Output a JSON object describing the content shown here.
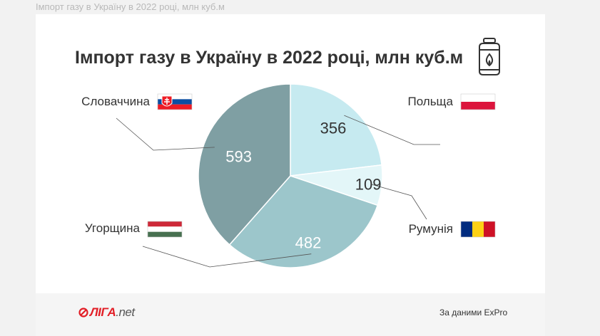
{
  "page": {
    "caption": "Імпорт газу в Україну в 2022 році, млн куб.м"
  },
  "card": {
    "title": "Імпорт газу в Україну в 2022 році, млн куб.м",
    "title_icon": "gas-cylinder-icon"
  },
  "chart_data": {
    "type": "pie",
    "title": "Імпорт газу в Україну в 2022 році, млн куб.м",
    "unit": "млн куб.м",
    "slices": [
      {
        "label": "Польща",
        "value": 356,
        "color": "#c6eaf0",
        "flag": "flag-poland-icon"
      },
      {
        "label": "Румунія",
        "value": 109,
        "color": "#e3f6f8",
        "flag": "flag-romania-icon"
      },
      {
        "label": "Угорщина",
        "value": 482,
        "color": "#9cc6cb",
        "flag": "flag-hungary-icon"
      },
      {
        "label": "Словаччина",
        "value": 593,
        "color": "#7f9fa3",
        "flag": "flag-slovakia-icon"
      }
    ],
    "start_angle_deg": 0,
    "direction": "clockwise"
  },
  "footer": {
    "brand": "ЛІГА",
    "brand_suffix": ".net",
    "brand_color": "#e21e26",
    "source": "За даними ExPro"
  }
}
